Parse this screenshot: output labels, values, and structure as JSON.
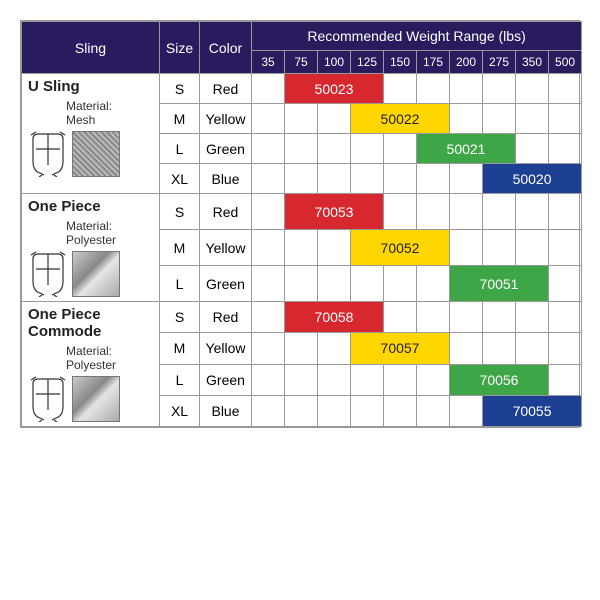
{
  "headers": {
    "sling": "Sling",
    "size": "Size",
    "color": "Color",
    "weight_title": "Recommended Weight Range (lbs)"
  },
  "weight_columns": [
    "35",
    "75",
    "100",
    "125",
    "150",
    "175",
    "200",
    "275",
    "350",
    "500"
  ],
  "colors": {
    "header_bg": "#2a1a5e",
    "header_fg": "#ffffff",
    "border": "#999999",
    "red": "#d7282f",
    "yellow": "#ffd600",
    "green": "#3fa648",
    "blue": "#1d3f94"
  },
  "groups": [
    {
      "name": "U Sling",
      "material_label": "Material:",
      "material": "Mesh",
      "swatch": "mesh",
      "rows": [
        {
          "size": "S",
          "color": "Red",
          "code": "50023",
          "bar_color": "red",
          "start": 1,
          "span": 3,
          "text_dark": false
        },
        {
          "size": "M",
          "color": "Yellow",
          "code": "50022",
          "bar_color": "yellow",
          "start": 3,
          "span": 3,
          "text_dark": true
        },
        {
          "size": "L",
          "color": "Green",
          "code": "50021",
          "bar_color": "green",
          "start": 5,
          "span": 3,
          "text_dark": false
        },
        {
          "size": "XL",
          "color": "Blue",
          "code": "50020",
          "bar_color": "blue",
          "start": 7,
          "span": 3,
          "text_dark": false
        }
      ]
    },
    {
      "name": "One Piece",
      "material_label": "Material:",
      "material": "Polyester",
      "swatch": "poly",
      "rows": [
        {
          "size": "S",
          "color": "Red",
          "code": "70053",
          "bar_color": "red",
          "start": 1,
          "span": 3,
          "text_dark": false
        },
        {
          "size": "M",
          "color": "Yellow",
          "code": "70052",
          "bar_color": "yellow",
          "start": 3,
          "span": 3,
          "text_dark": true
        },
        {
          "size": "L",
          "color": "Green",
          "code": "70051",
          "bar_color": "green",
          "start": 6,
          "span": 3,
          "text_dark": false
        }
      ]
    },
    {
      "name": "One Piece Commode",
      "material_label": "Material:",
      "material": "Polyester",
      "swatch": "poly",
      "rows": [
        {
          "size": "S",
          "color": "Red",
          "code": "70058",
          "bar_color": "red",
          "start": 1,
          "span": 3,
          "text_dark": false
        },
        {
          "size": "M",
          "color": "Yellow",
          "code": "70057",
          "bar_color": "yellow",
          "start": 3,
          "span": 3,
          "text_dark": true
        },
        {
          "size": "L",
          "color": "Green",
          "code": "70056",
          "bar_color": "green",
          "start": 6,
          "span": 3,
          "text_dark": false
        },
        {
          "size": "XL",
          "color": "Blue",
          "code": "70055",
          "bar_color": "blue",
          "start": 7,
          "span": 3,
          "text_dark": false
        }
      ]
    }
  ]
}
